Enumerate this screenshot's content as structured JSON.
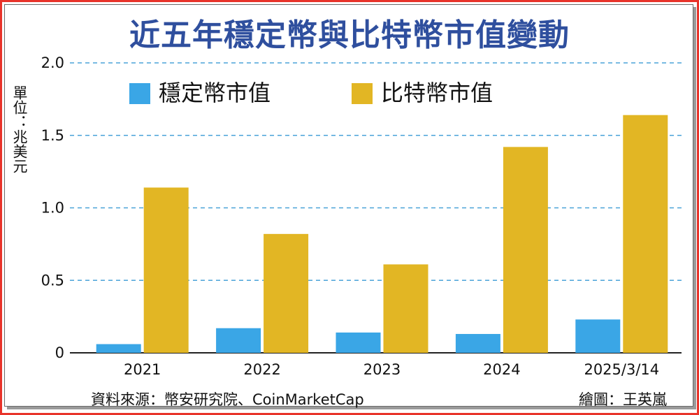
{
  "chart_data": {
    "type": "bar",
    "title": "近五年穩定幣與比特幣市值變動",
    "unit_label": "單位：兆美元",
    "categories": [
      "2021",
      "2022",
      "2023",
      "2024",
      "2025/3/14"
    ],
    "series": [
      {
        "name": "穩定幣市值",
        "color": "#3aa6e6",
        "values": [
          0.06,
          0.17,
          0.14,
          0.13,
          0.23
        ]
      },
      {
        "name": "比特幣市值",
        "color": "#e2b624",
        "values": [
          1.14,
          0.82,
          0.61,
          1.42,
          1.64
        ]
      }
    ],
    "y_ticks": [
      "0",
      "0.5",
      "1.0",
      "1.5",
      "2.0"
    ],
    "ylim": [
      0,
      2.0
    ],
    "grid": true,
    "grid_style": "dashed",
    "legend_position": "top-left",
    "source": "資料來源：幣安研究院、CoinMarketCap",
    "credit": "繪圖：王英嵐"
  },
  "colors": {
    "frame": "#e8332a",
    "title": "#2f4f9e",
    "grid": "#4aa3d8",
    "axis": "#222222"
  }
}
